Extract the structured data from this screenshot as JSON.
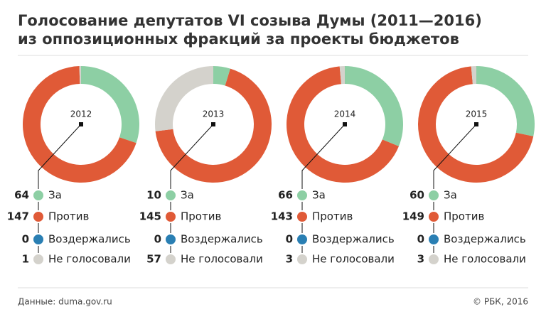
{
  "header": {
    "title": [
      "Голосование депутатов VI созыва Думы (2011—2016)",
      "из оппозиционных фракций за проекты бюджетов"
    ]
  },
  "footer": {
    "source": "Данные: duma.gov.ru",
    "credit": "© РБК, 2016"
  },
  "chart_data": [
    {
      "type": "donut",
      "title": "2012",
      "categories": [
        "За",
        "Против",
        "Воздержались",
        "Не голосовали"
      ],
      "values": [
        64,
        147,
        0,
        1
      ],
      "colors": [
        "#8dcfa4",
        "#e05a37",
        "#2a7fb3",
        "#d4d2cc"
      ]
    },
    {
      "type": "donut",
      "title": "2013",
      "categories": [
        "За",
        "Против",
        "Воздержались",
        "Не голосовали"
      ],
      "values": [
        10,
        145,
        0,
        57
      ],
      "colors": [
        "#8dcfa4",
        "#e05a37",
        "#2a7fb3",
        "#d4d2cc"
      ]
    },
    {
      "type": "donut",
      "title": "2014",
      "categories": [
        "За",
        "Против",
        "Воздержались",
        "Не голосовали"
      ],
      "values": [
        66,
        143,
        0,
        3
      ],
      "colors": [
        "#8dcfa4",
        "#e05a37",
        "#2a7fb3",
        "#d4d2cc"
      ]
    },
    {
      "type": "donut",
      "title": "2015",
      "categories": [
        "За",
        "Против",
        "Воздержались",
        "Не голосовали"
      ],
      "values": [
        60,
        149,
        0,
        3
      ],
      "colors": [
        "#8dcfa4",
        "#e05a37",
        "#2a7fb3",
        "#d4d2cc"
      ]
    }
  ]
}
